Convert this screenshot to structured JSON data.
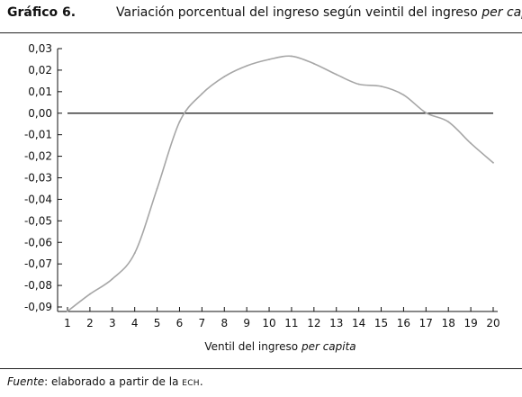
{
  "figure": {
    "label": "Gráfico 6.",
    "title_main": "Variación porcentual del ingreso según veintil del ingreso ",
    "title_italic": "per capita"
  },
  "footer": {
    "source_label": "Fuente",
    "source_text": ": elaborado a partir de la ",
    "source_abbrev": "ECH",
    "source_end": "."
  },
  "chart_data": {
    "type": "line",
    "x": [
      1,
      2,
      3,
      4,
      5,
      6,
      7,
      8,
      9,
      10,
      11,
      12,
      13,
      14,
      15,
      16,
      17,
      18,
      19,
      20
    ],
    "series": [
      {
        "values": [
          -0.092,
          -0.084,
          -0.077,
          -0.065,
          -0.035,
          -0.004,
          0.009,
          0.017,
          0.022,
          0.025,
          0.0265,
          0.023,
          0.018,
          0.0135,
          0.0125,
          0.0085,
          0.0002,
          -0.004,
          -0.014,
          -0.023
        ]
      }
    ],
    "xlabel_main": "Ventil del ingreso ",
    "xlabel_italic": "per capita",
    "ylabel": "",
    "xlim": [
      1,
      20
    ],
    "ylim": [
      -0.09,
      0.03
    ],
    "yticks": [
      "0,03",
      "0,02",
      "0,01",
      "0,00",
      "-0,01",
      "-0,02",
      "-0,03",
      "-0,04",
      "-0,05",
      "-0,06",
      "-0,07",
      "-0,08",
      "-0,09"
    ],
    "ytick_values": [
      0.03,
      0.02,
      0.01,
      0.0,
      -0.01,
      -0.02,
      -0.03,
      -0.04,
      -0.05,
      -0.06,
      -0.07,
      -0.08,
      -0.09
    ],
    "xticks": [
      "1",
      "2",
      "3",
      "4",
      "5",
      "6",
      "7",
      "8",
      "9",
      "10",
      "11",
      "12",
      "13",
      "14",
      "15",
      "16",
      "17",
      "18",
      "19",
      "20"
    ],
    "zero_line": true,
    "grid": false,
    "colors": {
      "line": "#a6a6a6",
      "zero_line": "#111111",
      "axis": "#111111"
    }
  }
}
